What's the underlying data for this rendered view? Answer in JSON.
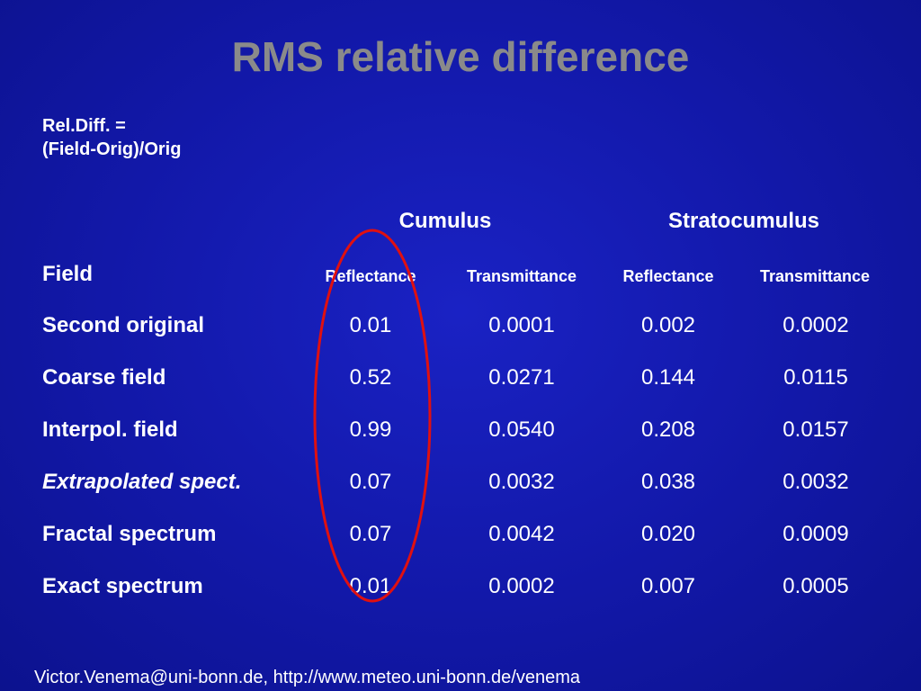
{
  "title": "RMS relative difference",
  "formula": {
    "line1": "Rel.Diff. =",
    "line2": "(Field-Orig)/Orig"
  },
  "table": {
    "groups": [
      "Cumulus",
      "Stratocumulus"
    ],
    "field_header": "Field",
    "column_headers": [
      "Reflectance",
      "Transmittance",
      "Reflectance",
      "Transmittance"
    ],
    "rows": [
      {
        "label": "Second original",
        "italic": false,
        "values": [
          "0.01",
          "0.0001",
          "0.002",
          "0.0002"
        ]
      },
      {
        "label": "Coarse field",
        "italic": false,
        "values": [
          "0.52",
          "0.0271",
          "0.144",
          "0.0115"
        ]
      },
      {
        "label": "Interpol. field",
        "italic": false,
        "values": [
          "0.99",
          "0.0540",
          "0.208",
          "0.0157"
        ]
      },
      {
        "label": "Extrapolated spect.",
        "italic": true,
        "values": [
          "0.07",
          "0.0032",
          "0.038",
          "0.0032"
        ]
      },
      {
        "label": "Fractal spectrum",
        "italic": false,
        "values": [
          "0.07",
          "0.0042",
          "0.020",
          "0.0009"
        ]
      },
      {
        "label": "Exact spectrum",
        "italic": false,
        "values": [
          "0.01",
          "0.0002",
          "0.007",
          "0.0005"
        ]
      }
    ]
  },
  "highlight": {
    "color": "#e01010",
    "column": "Cumulus Reflectance"
  },
  "footer": "Victor.Venema@uni-bonn.de, http://www.meteo.uni-bonn.de/venema",
  "colors": {
    "background": "#1218a8",
    "title": "#8a8a8a",
    "text": "#ffffff"
  }
}
